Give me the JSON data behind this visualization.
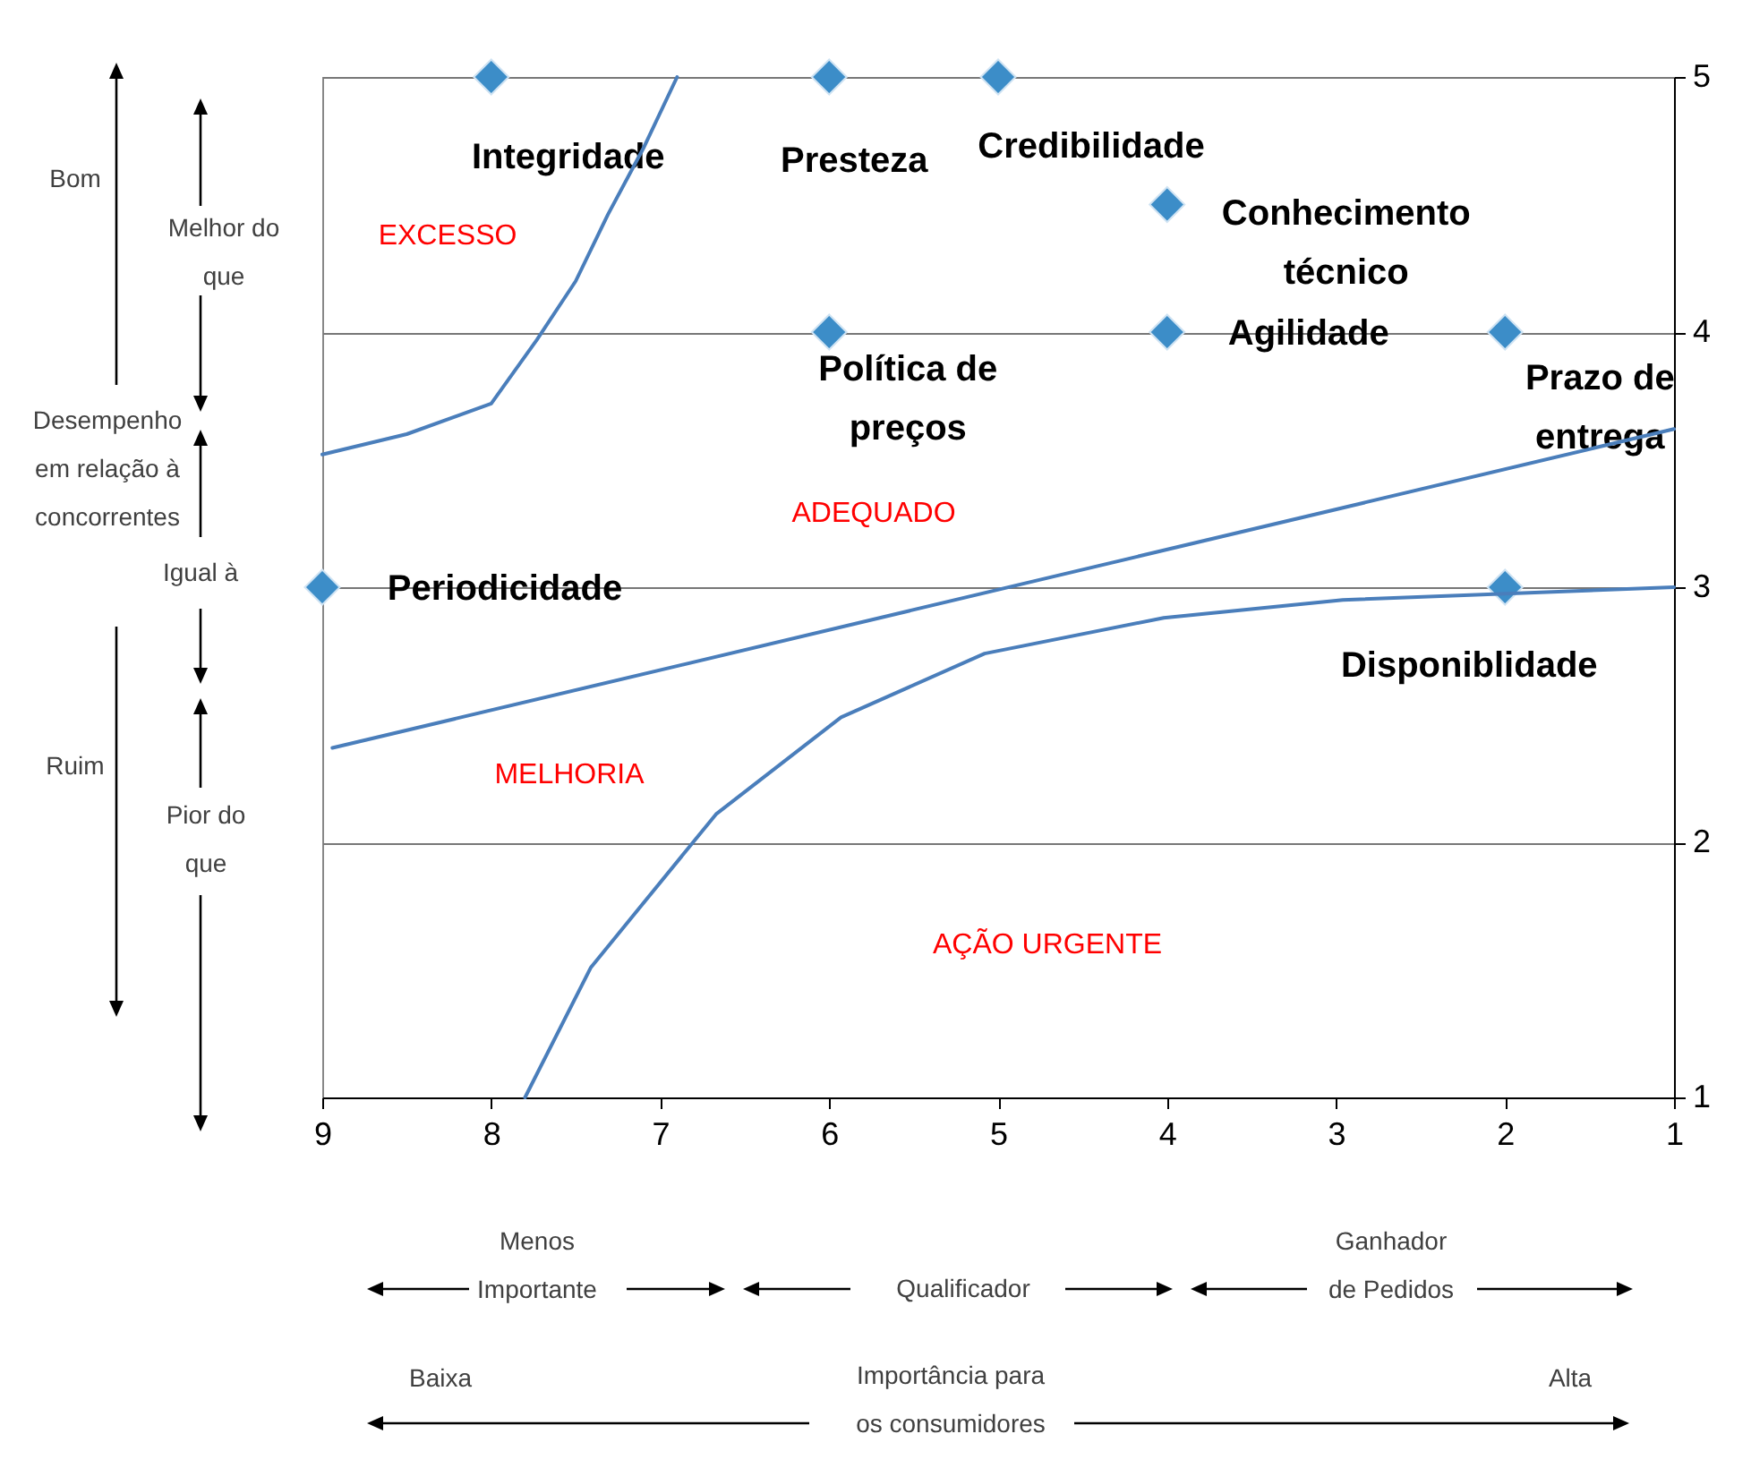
{
  "chart_data": {
    "type": "scatter",
    "series": [
      {
        "color": "#3c8dc8",
        "marker": "diamond",
        "x": [
          8,
          6,
          5,
          4,
          6,
          4,
          2,
          9,
          2
        ],
        "values": [
          5,
          5,
          5,
          4.5,
          4,
          4,
          4,
          3,
          3
        ],
        "value_labels": [
          "Integridade",
          "Presteza",
          "Credibilidade",
          "Conhecimento\ntécnico",
          "Política de\npreços",
          "Agilidade",
          "Prazo de\nentrega",
          "Periodicidade",
          "Disponiblidade"
        ]
      },
      {
        "type": "line",
        "color": "#4a7ebb",
        "line_style": "solid",
        "x": [
          9,
          8.5,
          8,
          7.73,
          7.5,
          7.31,
          7.1,
          6.9
        ],
        "values": [
          3.52,
          3.6,
          3.72,
          3.97,
          4.2,
          4.46,
          4.72,
          5
        ]
      },
      {
        "type": "line",
        "color": "#4a7ebb",
        "line_style": "solid",
        "x": [
          8.94,
          1
        ],
        "values": [
          2.37,
          3.62
        ]
      },
      {
        "type": "line",
        "color": "#4a7ebb",
        "line_style": "solid",
        "x": [
          7.8,
          7.41,
          6.67,
          5.93,
          5.08,
          4.02,
          2.96,
          1
        ],
        "values": [
          1,
          1.51,
          2.11,
          2.49,
          2.74,
          2.88,
          2.95,
          3
        ]
      }
    ],
    "xlim": [
      9,
      1
    ],
    "xticks": [
      9,
      8,
      7,
      6,
      5,
      4,
      3,
      2,
      1
    ],
    "ylim": [
      1,
      5
    ],
    "yticks": [
      1,
      2,
      3,
      4,
      5
    ],
    "grid": "y",
    "annotations": [
      "EXCESSO",
      "ADEQUADO",
      "MELHORIA",
      "AÇÃO URGENTE",
      "Bom",
      "Melhor do\nque",
      "Desempenho\nem relação à\nconcorrentes",
      "Igual à",
      "Ruim",
      "Pior do\nque",
      "Menos\nImportante",
      "Qualificador",
      "Ganhador\nde Pedidos",
      "Baixa",
      "Importância para\nos consumidores",
      "Alta"
    ]
  }
}
